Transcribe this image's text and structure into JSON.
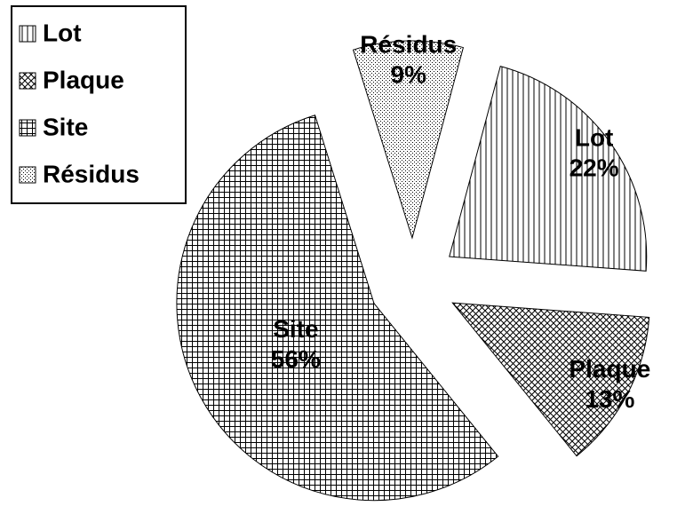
{
  "chart_data": {
    "type": "pie",
    "categories": [
      "Lot",
      "Plaque",
      "Site",
      "Résidus"
    ],
    "values": [
      22,
      13,
      56,
      9
    ],
    "value_labels": [
      "22%",
      "13%",
      "56%",
      "9%"
    ],
    "patterns": [
      "vertical",
      "diagonal-cross",
      "grid",
      "dots"
    ],
    "legend": "top-left"
  }
}
